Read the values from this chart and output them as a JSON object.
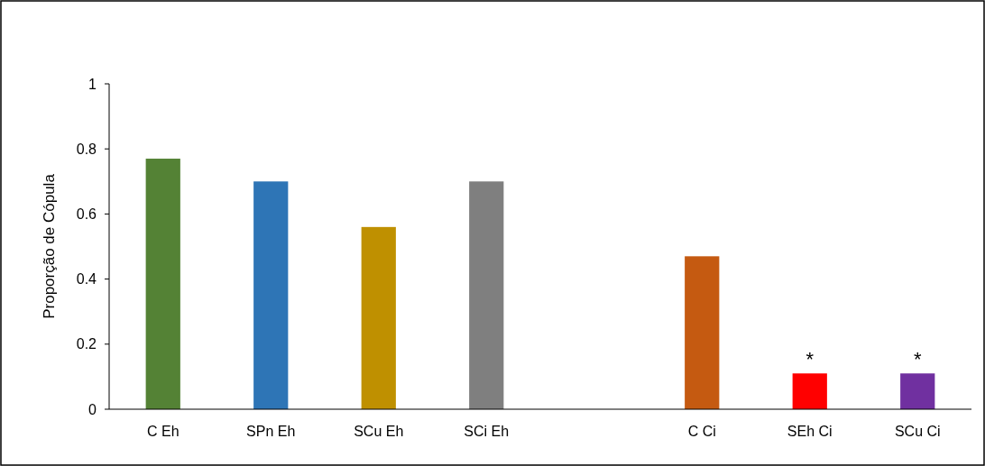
{
  "chart_data": {
    "type": "bar",
    "ylabel": "Proporção de Cópula",
    "categories": [
      "C Eh",
      "SPn Eh",
      "SCu Eh",
      "SCi Eh",
      null,
      "C Ci",
      "SEh Ci",
      "SCu Ci"
    ],
    "values": [
      0.77,
      0.7,
      0.56,
      0.7,
      null,
      0.47,
      0.11,
      0.11
    ],
    "colors": [
      "#548235",
      "#2e75b6",
      "#bf9000",
      "#7f7f7f",
      null,
      "#c55a11",
      "#ff0000",
      "#7030a0"
    ],
    "ylim": [
      0,
      1
    ],
    "yticks": [
      0,
      0.2,
      0.4,
      0.6,
      0.8,
      1
    ],
    "annotations": [
      {
        "text": "*",
        "x": "SEh Ci",
        "y": 0.11
      },
      {
        "text": "*",
        "x": "SCu Ci",
        "y": 0.11
      }
    ]
  }
}
